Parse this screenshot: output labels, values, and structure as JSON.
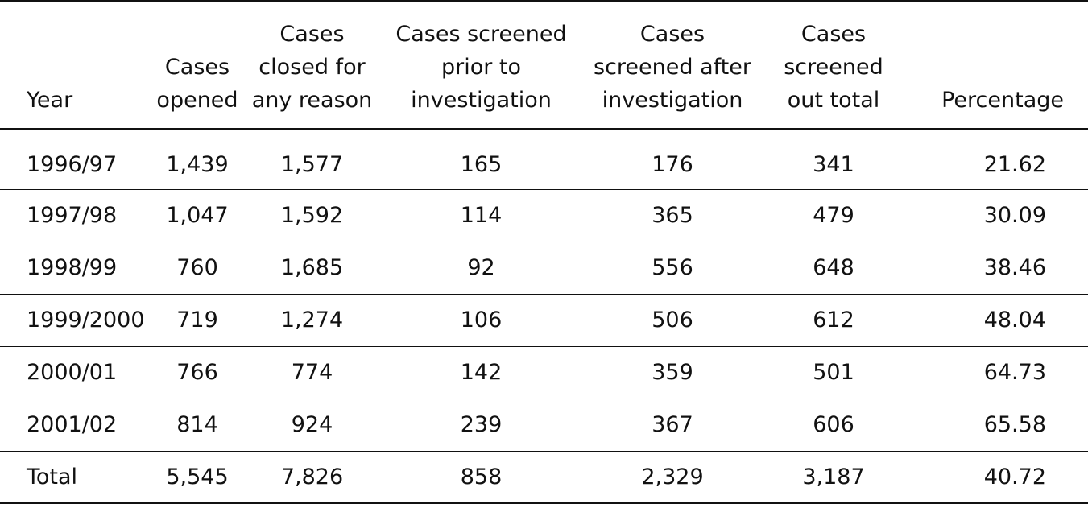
{
  "table": {
    "headers": [
      "Year",
      "Cases\nopened",
      "Cases\nclosed for\nany reason",
      "Cases screened\nprior to\ninvestigation",
      "Cases\nscreened after\ninvestigation",
      "Cases\nscreened\nout total",
      "Percentage"
    ],
    "rows": [
      [
        "1996/97",
        "1,439",
        "1,577",
        "165",
        "176",
        "341",
        "21.62"
      ],
      [
        "1997/98",
        "1,047",
        "1,592",
        "114",
        "365",
        "479",
        "30.09"
      ],
      [
        "1998/99",
        "760",
        "1,685",
        "92",
        "556",
        "648",
        "38.46"
      ],
      [
        "1999/2000",
        "719",
        "1,274",
        "106",
        "506",
        "612",
        "48.04"
      ],
      [
        "2000/01",
        "766",
        "774",
        "142",
        "359",
        "501",
        "64.73"
      ],
      [
        "2001/02",
        "814",
        "924",
        "239",
        "367",
        "606",
        "65.58"
      ],
      [
        "Total",
        "5,545",
        "7,826",
        "858",
        "2,329",
        "3,187",
        "40.72"
      ]
    ]
  }
}
